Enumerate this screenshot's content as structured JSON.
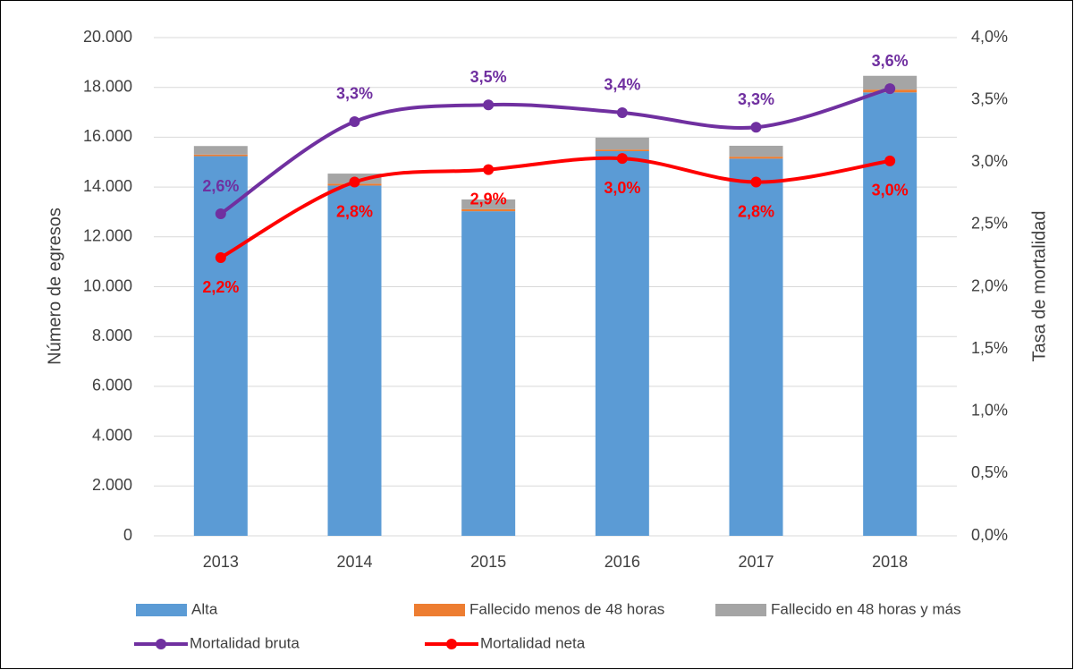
{
  "chart_data": {
    "type": "bar",
    "categories": [
      "2013",
      "2014",
      "2015",
      "2016",
      "2017",
      "2018"
    ],
    "series": [
      {
        "name": "Alta",
        "color": "#5b9bd5",
        "values": [
          15240,
          14060,
          13030,
          15440,
          15140,
          17800
        ]
      },
      {
        "name": "Fallecido menos de 48 horas",
        "color": "#ed7d31",
        "values": [
          63,
          73,
          80,
          63,
          79,
          111
        ]
      },
      {
        "name": "Fallecido en 48 horas y más",
        "color": "#a5a5a5",
        "values": [
          344,
          407,
          392,
          480,
          438,
          554
        ]
      },
      {
        "name": "Mortalidad bruta",
        "type": "line",
        "axis": "y2",
        "color": "#7030a0",
        "values": [
          2.585,
          3.325,
          3.46,
          3.397,
          3.28,
          3.59
        ],
        "value_labels": [
          "2,6%",
          "3,3%",
          "3,5%",
          "3,4%",
          "3,3%",
          "3,6%"
        ]
      },
      {
        "name": "Mortalidad neta",
        "type": "line",
        "axis": "y2",
        "color": "#ff0000",
        "values": [
          2.233,
          2.84,
          2.94,
          3.03,
          2.84,
          3.01
        ],
        "value_labels": [
          "2,2%",
          "2,8%",
          "2,9%",
          "3,0%",
          "2,8%",
          "3,0%"
        ]
      }
    ],
    "ylabel": "Número de egresos",
    "y2label": "Tasa de mortalidad",
    "ylim": [
      0,
      20000
    ],
    "yticks": [
      0,
      {
        "value": 2000,
        "label": "2.000"
      },
      {
        "value": 4000,
        "label": "4.000"
      },
      {
        "value": 6000,
        "label": "6.000"
      },
      {
        "value": 8000,
        "label": "8.000"
      },
      {
        "value": 10000,
        "label": "10.000"
      },
      {
        "value": 12000,
        "label": "12.000"
      },
      {
        "value": 14000,
        "label": "14.000"
      },
      {
        "value": 16000,
        "label": "16.000"
      },
      {
        "value": 18000,
        "label": "18.000"
      },
      {
        "value": 20000,
        "label": "20.000"
      }
    ],
    "y2lim": [
      0,
      4
    ],
    "y2ticks": [
      {
        "value": 0,
        "label": "0,0%"
      },
      {
        "value": 0.5,
        "label": "0,5%"
      },
      {
        "value": 1,
        "label": "1,0%"
      },
      {
        "value": 1.5,
        "label": "1,5%"
      },
      {
        "value": 2,
        "label": "2,0%"
      },
      {
        "value": 2.5,
        "label": "2,5%"
      },
      {
        "value": 3,
        "label": "3,0%"
      },
      {
        "value": 3.5,
        "label": "3,5%"
      },
      {
        "value": 4,
        "label": "4,0%"
      }
    ],
    "grid": true,
    "legend": "bottom"
  }
}
